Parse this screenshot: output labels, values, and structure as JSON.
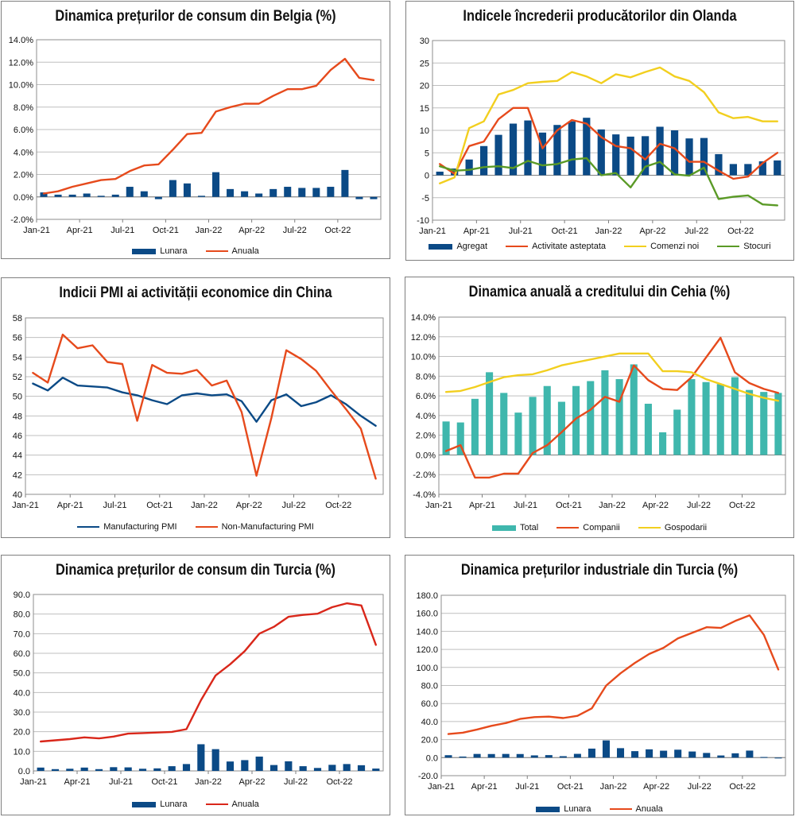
{
  "chart_data": [
    {
      "id": "belgia-cpi",
      "type": "bar+line",
      "title": "Dinamica prețurilor de consum din Belgia (%)",
      "categories": [
        "Jan-21",
        "Feb-21",
        "Mar-21",
        "Apr-21",
        "May-21",
        "Jun-21",
        "Jul-21",
        "Aug-21",
        "Sep-21",
        "Oct-21",
        "Nov-21",
        "Dec-21",
        "Jan-22",
        "Feb-22",
        "Mar-22",
        "Apr-22",
        "May-22",
        "Jun-22",
        "Jul-22",
        "Aug-22",
        "Sep-22",
        "Oct-22",
        "Nov-22",
        "Dec-22"
      ],
      "xtick_labels": [
        "Jan-21",
        "",
        "",
        "Apr-21",
        "",
        "",
        "Jul-21",
        "",
        "",
        "Oct-21",
        "",
        "",
        "Jan-22",
        "",
        "",
        "Apr-22",
        "",
        "",
        "Jul-22",
        "",
        "",
        "Oct-22",
        "",
        ""
      ],
      "ylim": [
        -2,
        14
      ],
      "yticks": [
        -2,
        0,
        2,
        4,
        6,
        8,
        10,
        12,
        14
      ],
      "ytick_labels": [
        "-2.0%",
        "0.0%",
        "2.0%",
        "4.0%",
        "6.0%",
        "8.0%",
        "10.0%",
        "12.0%",
        "14.0%"
      ],
      "bar_series": [
        {
          "name": "Lunara",
          "color": "#0b4a86",
          "values": [
            0.4,
            0.2,
            0.2,
            0.3,
            0.1,
            0.2,
            0.9,
            0.5,
            -0.2,
            1.5,
            1.2,
            0.1,
            2.2,
            0.7,
            0.5,
            0.3,
            0.7,
            0.9,
            0.8,
            0.8,
            0.9,
            2.4,
            -0.2,
            -0.2
          ]
        }
      ],
      "line_series": [
        {
          "name": "Anuala",
          "color": "#e64a1c",
          "values": [
            0.3,
            0.5,
            0.9,
            1.2,
            1.5,
            1.6,
            2.3,
            2.8,
            2.9,
            4.2,
            5.6,
            5.7,
            7.6,
            8.0,
            8.3,
            8.3,
            9.0,
            9.6,
            9.6,
            9.9,
            11.3,
            12.3,
            10.6,
            10.4
          ]
        }
      ]
    },
    {
      "id": "olanda-producer-confidence",
      "type": "bar+line",
      "title": "Indicele încrederii producătorilor din Olanda",
      "categories": [
        "Jan-21",
        "Feb-21",
        "Mar-21",
        "Apr-21",
        "May-21",
        "Jun-21",
        "Jul-21",
        "Aug-21",
        "Sep-21",
        "Oct-21",
        "Nov-21",
        "Dec-21",
        "Jan-22",
        "Feb-22",
        "Mar-22",
        "Apr-22",
        "May-22",
        "Jun-22",
        "Jul-22",
        "Aug-22",
        "Sep-22",
        "Oct-22",
        "Nov-22",
        "Dec-22"
      ],
      "xtick_labels": [
        "Jan-21",
        "",
        "",
        "Apr-21",
        "",
        "",
        "Jul-21",
        "",
        "",
        "Oct-21",
        "",
        "",
        "Jan-22",
        "",
        "",
        "Apr-22",
        "",
        "",
        "Jul-22",
        "",
        "",
        "Oct-22",
        "",
        ""
      ],
      "ylim": [
        -10,
        30
      ],
      "yticks": [
        -10,
        -5,
        0,
        5,
        10,
        15,
        20,
        25,
        30
      ],
      "ytick_labels": [
        "-10",
        "-5",
        "0",
        "5",
        "10",
        "15",
        "20",
        "25",
        "30"
      ],
      "bar_series": [
        {
          "name": "Agregat",
          "color": "#0b4a86",
          "values": [
            0.8,
            1.5,
            3.5,
            6.5,
            9,
            11.5,
            12.2,
            9.5,
            11.2,
            12,
            12.8,
            10.2,
            9.1,
            8.6,
            8.7,
            10.8,
            10,
            8.2,
            8.3,
            4.7,
            2.5,
            2.5,
            3.1,
            3.3
          ]
        }
      ],
      "line_series": [
        {
          "name": "Activitate asteptata",
          "color": "#e64a1c",
          "values": [
            2.5,
            0.3,
            6.5,
            7.5,
            12.5,
            15,
            15,
            6,
            10,
            12.3,
            11.5,
            8.5,
            6.5,
            6,
            3.5,
            7,
            6,
            3,
            3,
            1,
            -0.8,
            -0.3,
            2.7,
            5
          ]
        },
        {
          "name": "Comenzi noi",
          "color": "#f2cf1f",
          "values": [
            -1.8,
            -0.5,
            10.5,
            12,
            18,
            19,
            20.5,
            20.8,
            21,
            23,
            22,
            20.5,
            22.5,
            21.8,
            23,
            24,
            22,
            21,
            18.5,
            14,
            12.7,
            13,
            12,
            12
          ]
        },
        {
          "name": "Stocuri",
          "color": "#5a9a26",
          "values": [
            2,
            1,
            1.2,
            1.8,
            2,
            1.6,
            3.2,
            2.2,
            2.5,
            3.5,
            3.8,
            0,
            0.5,
            -2.7,
            1.9,
            3,
            0.2,
            -0.1,
            1.7,
            -5.3,
            -4.8,
            -4.5,
            -6.5,
            -6.7
          ]
        }
      ]
    },
    {
      "id": "china-pmi",
      "type": "line",
      "title": "Indicii PMI ai activității economice din China",
      "categories": [
        "Jan-21",
        "Feb-21",
        "Mar-21",
        "Apr-21",
        "May-21",
        "Jun-21",
        "Jul-21",
        "Aug-21",
        "Sep-21",
        "Oct-21",
        "Nov-21",
        "Dec-21",
        "Jan-22",
        "Feb-22",
        "Mar-22",
        "Apr-22",
        "May-22",
        "Jun-22",
        "Jul-22",
        "Aug-22",
        "Sep-22",
        "Oct-22",
        "Nov-22",
        "Dec-22"
      ],
      "xtick_labels": [
        "Jan-21",
        "",
        "",
        "Apr-21",
        "",
        "",
        "Jul-21",
        "",
        "",
        "Oct-21",
        "",
        "",
        "Jan-22",
        "",
        "",
        "Apr-22",
        "",
        "",
        "Jul-22",
        "",
        "",
        "Oct-22",
        "",
        ""
      ],
      "ylim": [
        40,
        58
      ],
      "yticks": [
        40,
        42,
        44,
        46,
        48,
        50,
        52,
        54,
        56,
        58
      ],
      "ytick_labels": [
        "40",
        "42",
        "44",
        "46",
        "48",
        "50",
        "52",
        "54",
        "56",
        "58"
      ],
      "bar_series": [],
      "line_series": [
        {
          "name": "Manufacturing PMI",
          "color": "#0b4a86",
          "values": [
            51.3,
            50.6,
            51.9,
            51.1,
            51.0,
            50.9,
            50.4,
            50.1,
            49.6,
            49.2,
            50.1,
            50.3,
            50.1,
            50.2,
            49.5,
            47.4,
            49.6,
            50.2,
            49.0,
            49.4,
            50.1,
            49.2,
            48.0,
            47.0
          ]
        },
        {
          "name": "Non-Manufacturing PMI",
          "color": "#e64a1c",
          "values": [
            52.4,
            51.4,
            56.3,
            54.9,
            55.2,
            53.5,
            53.3,
            47.5,
            53.2,
            52.4,
            52.3,
            52.7,
            51.1,
            51.6,
            48.4,
            41.9,
            47.8,
            54.7,
            53.8,
            52.6,
            50.6,
            48.7,
            46.7,
            41.6
          ]
        }
      ]
    },
    {
      "id": "cehia-credit",
      "type": "bar+line",
      "title": "Dinamica anuală a creditului din Cehia (%)",
      "categories": [
        "Jan-21",
        "Feb-21",
        "Mar-21",
        "Apr-21",
        "May-21",
        "Jun-21",
        "Jul-21",
        "Aug-21",
        "Sep-21",
        "Oct-21",
        "Nov-21",
        "Dec-21",
        "Jan-22",
        "Feb-22",
        "Mar-22",
        "Apr-22",
        "May-22",
        "Jun-22",
        "Jul-22",
        "Aug-22",
        "Sep-22",
        "Oct-22",
        "Nov-22",
        "Dec-22"
      ],
      "xtick_labels": [
        "Jan-21",
        "",
        "",
        "Apr-21",
        "",
        "",
        "Jul-21",
        "",
        "",
        "Oct-21",
        "",
        "",
        "Jan-22",
        "",
        "",
        "Apr-22",
        "",
        "",
        "Jul-22",
        "",
        "",
        "Oct-22",
        "",
        ""
      ],
      "ylim": [
        -4,
        14
      ],
      "yticks": [
        -4,
        -2,
        0,
        2,
        4,
        6,
        8,
        10,
        12,
        14
      ],
      "ytick_labels": [
        "-4.0%",
        "-2.0%",
        "0.0%",
        "2.0%",
        "4.0%",
        "6.0%",
        "8.0%",
        "10.0%",
        "12.0%",
        "14.0%"
      ],
      "bar_series": [
        {
          "name": "Total",
          "color": "#3fb7ad",
          "values": [
            3.4,
            3.3,
            5.7,
            8.4,
            6.3,
            4.3,
            5.9,
            7.0,
            5.4,
            7.0,
            7.5,
            8.6,
            7.7,
            9.2,
            5.2,
            2.3,
            4.6,
            7.7,
            7.4,
            7.2,
            7.9,
            6.6,
            6.4,
            6.3
          ]
        }
      ],
      "line_series": [
        {
          "name": "Companii",
          "color": "#e64a1c",
          "values": [
            0.4,
            1.0,
            -2.3,
            -2.3,
            -1.9,
            -1.9,
            0.2,
            1.0,
            2.3,
            3.7,
            4.6,
            5.9,
            5.4,
            9.1,
            7.6,
            6.7,
            6.6,
            7.9,
            9.9,
            11.9,
            8.4,
            7.3,
            6.7,
            6.3
          ]
        },
        {
          "name": "Gospodarii",
          "color": "#f2cf1f",
          "values": [
            6.4,
            6.5,
            6.9,
            7.4,
            7.9,
            8.1,
            8.2,
            8.6,
            9.1,
            9.4,
            9.7,
            10.0,
            10.3,
            10.3,
            10.3,
            8.5,
            8.5,
            8.4,
            7.7,
            7.2,
            6.7,
            6.2,
            5.8,
            5.5
          ]
        }
      ]
    },
    {
      "id": "turcia-cpi",
      "type": "bar+line",
      "title": "Dinamica prețurilor de consum din Turcia (%)",
      "categories": [
        "Jan-21",
        "Feb-21",
        "Mar-21",
        "Apr-21",
        "May-21",
        "Jun-21",
        "Jul-21",
        "Aug-21",
        "Sep-21",
        "Oct-21",
        "Nov-21",
        "Dec-21",
        "Jan-22",
        "Feb-22",
        "Mar-22",
        "Apr-22",
        "May-22",
        "Jun-22",
        "Jul-22",
        "Aug-22",
        "Sep-22",
        "Oct-22",
        "Nov-22",
        "Dec-22"
      ],
      "xtick_labels": [
        "Jan-21",
        "",
        "",
        "Apr-21",
        "",
        "",
        "Jul-21",
        "",
        "",
        "Oct-21",
        "",
        "",
        "Jan-22",
        "",
        "",
        "Apr-22",
        "",
        "",
        "Jul-22",
        "",
        "",
        "Oct-22",
        "",
        ""
      ],
      "ylim": [
        0,
        90
      ],
      "yticks": [
        0,
        10,
        20,
        30,
        40,
        50,
        60,
        70,
        80,
        90
      ],
      "ytick_labels": [
        "0.0",
        "10.0",
        "20.0",
        "30.0",
        "40.0",
        "50.0",
        "60.0",
        "70.0",
        "80.0",
        "90.0"
      ],
      "bar_series": [
        {
          "name": "Lunara",
          "color": "#0b4a86",
          "values": [
            1.7,
            0.9,
            1.1,
            1.7,
            0.9,
            1.9,
            1.8,
            1.1,
            1.3,
            2.4,
            3.5,
            13.6,
            11.1,
            4.8,
            5.5,
            7.3,
            3.0,
            4.9,
            2.4,
            1.5,
            3.1,
            3.5,
            2.9,
            1.2
          ]
        }
      ],
      "line_series": [
        {
          "name": "Anuala",
          "color": "#d9271a",
          "values": [
            15.0,
            15.6,
            16.2,
            17.1,
            16.6,
            17.5,
            19.0,
            19.3,
            19.6,
            19.9,
            21.3,
            36.1,
            48.7,
            54.4,
            61.1,
            70.0,
            73.5,
            78.6,
            79.6,
            80.2,
            83.5,
            85.5,
            84.4,
            64.3
          ]
        }
      ]
    },
    {
      "id": "turcia-ppi",
      "type": "bar+line",
      "title": "Dinamica prețurilor industriale din Turcia (%)",
      "categories": [
        "Jan-21",
        "Feb-21",
        "Mar-21",
        "Apr-21",
        "May-21",
        "Jun-21",
        "Jul-21",
        "Aug-21",
        "Sep-21",
        "Oct-21",
        "Nov-21",
        "Dec-21",
        "Jan-22",
        "Feb-22",
        "Mar-22",
        "Apr-22",
        "May-22",
        "Jun-22",
        "Jul-22",
        "Aug-22",
        "Sep-22",
        "Oct-22",
        "Nov-22",
        "Dec-22"
      ],
      "xtick_labels": [
        "Jan-21",
        "",
        "",
        "Apr-21",
        "",
        "",
        "Jul-21",
        "",
        "",
        "Oct-21",
        "",
        "",
        "Jan-22",
        "",
        "",
        "Apr-22",
        "",
        "",
        "Jul-22",
        "",
        "",
        "Oct-22",
        "",
        ""
      ],
      "ylim": [
        -20,
        180
      ],
      "yticks": [
        -20,
        0,
        20,
        40,
        60,
        80,
        100,
        120,
        140,
        160,
        180
      ],
      "ytick_labels": [
        "-20.0",
        "0.0",
        "20.0",
        "40.0",
        "60.0",
        "80.0",
        "100.0",
        "120.0",
        "140.0",
        "160.0",
        "180.0"
      ],
      "bar_series": [
        {
          "name": "Lunara",
          "color": "#0b4a86",
          "values": [
            2.7,
            1.2,
            4.1,
            4.0,
            4.1,
            4.0,
            2.5,
            2.8,
            1.6,
            4.2,
            10.0,
            19.1,
            10.5,
            7.2,
            9.2,
            7.7,
            8.8,
            6.8,
            5.2,
            2.4,
            4.8,
            7.8,
            0.7,
            -0.2
          ]
        }
      ],
      "line_series": [
        {
          "name": "Anuala",
          "color": "#e64a1c",
          "values": [
            26.2,
            27.7,
            31.2,
            35.2,
            38.3,
            42.9,
            44.9,
            45.5,
            43.9,
            46.3,
            54.6,
            79.9,
            93.5,
            105.0,
            114.9,
            121.8,
            132.2,
            138.3,
            144.6,
            143.8,
            151.5,
            157.7,
            136.0,
            97.7
          ]
        }
      ]
    }
  ]
}
